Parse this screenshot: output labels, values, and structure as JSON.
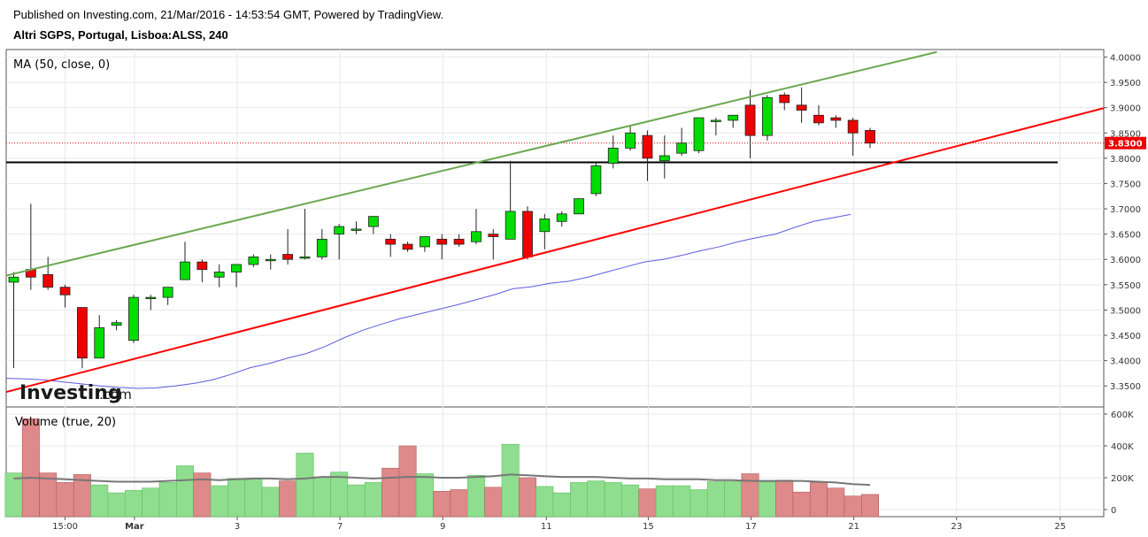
{
  "header": {
    "published": "Published on Investing.com, 21/Mar/2016 - 14:53:54 GMT, Powered by TradingView.",
    "instrument": "Altri SGPS, Portugal, Lisboa:ALSS, 240"
  },
  "logo": {
    "part1": "Investing",
    "part2": ".com"
  },
  "colors": {
    "up": "#00dd00",
    "down": "#ee0000",
    "vol_up": "#8fde8f",
    "vol_down": "#de8a8a",
    "ma": "#5b5bdd",
    "channel_upper": "#6aa84f",
    "channel_lower": "#ff0000",
    "support": "#000000",
    "vol_ma": "#777777"
  },
  "chart_data": {
    "type": "candlestick",
    "price_panel": {
      "label": "MA (50, close, 0)",
      "ylim": [
        3.3,
        4.01
      ],
      "y_ticks": [
        "4.0000",
        "3.9500",
        "3.9000",
        "3.8500",
        "3.8000",
        "3.7500",
        "3.7000",
        "3.6500",
        "3.6000",
        "3.5500",
        "3.5000",
        "3.4500",
        "3.4000",
        "3.3500"
      ],
      "last_price": "3.8300",
      "candles": [
        {
          "o": 3.555,
          "h": 3.575,
          "l": 3.385,
          "c": 3.565
        },
        {
          "o": 3.58,
          "h": 3.71,
          "l": 3.54,
          "c": 3.565
        },
        {
          "o": 3.57,
          "h": 3.605,
          "l": 3.54,
          "c": 3.545
        },
        {
          "o": 3.545,
          "h": 3.55,
          "l": 3.505,
          "c": 3.53
        },
        {
          "o": 3.505,
          "h": 3.505,
          "l": 3.385,
          "c": 3.405
        },
        {
          "o": 3.405,
          "h": 3.49,
          "l": 3.405,
          "c": 3.465
        },
        {
          "o": 3.47,
          "h": 3.48,
          "l": 3.46,
          "c": 3.475
        },
        {
          "o": 3.44,
          "h": 3.53,
          "l": 3.435,
          "c": 3.525
        },
        {
          "o": 3.525,
          "h": 3.53,
          "l": 3.5,
          "c": 3.525
        },
        {
          "o": 3.525,
          "h": 3.545,
          "l": 3.51,
          "c": 3.545
        },
        {
          "o": 3.56,
          "h": 3.635,
          "l": 3.56,
          "c": 3.595
        },
        {
          "o": 3.595,
          "h": 3.6,
          "l": 3.555,
          "c": 3.58
        },
        {
          "o": 3.565,
          "h": 3.59,
          "l": 3.545,
          "c": 3.575
        },
        {
          "o": 3.575,
          "h": 3.59,
          "l": 3.545,
          "c": 3.59
        },
        {
          "o": 3.59,
          "h": 3.61,
          "l": 3.585,
          "c": 3.605
        },
        {
          "o": 3.6,
          "h": 3.61,
          "l": 3.58,
          "c": 3.6
        },
        {
          "o": 3.61,
          "h": 3.66,
          "l": 3.59,
          "c": 3.6
        },
        {
          "o": 3.605,
          "h": 3.7,
          "l": 3.6,
          "c": 3.605
        },
        {
          "o": 3.605,
          "h": 3.66,
          "l": 3.6,
          "c": 3.64
        },
        {
          "o": 3.65,
          "h": 3.67,
          "l": 3.6,
          "c": 3.665
        },
        {
          "o": 3.66,
          "h": 3.675,
          "l": 3.65,
          "c": 3.66
        },
        {
          "o": 3.665,
          "h": 3.68,
          "l": 3.65,
          "c": 3.685
        },
        {
          "o": 3.64,
          "h": 3.65,
          "l": 3.605,
          "c": 3.63
        },
        {
          "o": 3.63,
          "h": 3.635,
          "l": 3.615,
          "c": 3.62
        },
        {
          "o": 3.625,
          "h": 3.645,
          "l": 3.615,
          "c": 3.645
        },
        {
          "o": 3.64,
          "h": 3.65,
          "l": 3.6,
          "c": 3.63
        },
        {
          "o": 3.64,
          "h": 3.65,
          "l": 3.625,
          "c": 3.63
        },
        {
          "o": 3.635,
          "h": 3.7,
          "l": 3.63,
          "c": 3.655
        },
        {
          "o": 3.65,
          "h": 3.66,
          "l": 3.6,
          "c": 3.645
        },
        {
          "o": 3.64,
          "h": 3.795,
          "l": 3.64,
          "c": 3.695
        },
        {
          "o": 3.695,
          "h": 3.705,
          "l": 3.6,
          "c": 3.605
        },
        {
          "o": 3.655,
          "h": 3.69,
          "l": 3.62,
          "c": 3.68
        },
        {
          "o": 3.675,
          "h": 3.695,
          "l": 3.665,
          "c": 3.69
        },
        {
          "o": 3.69,
          "h": 3.72,
          "l": 3.69,
          "c": 3.72
        },
        {
          "o": 3.73,
          "h": 3.79,
          "l": 3.725,
          "c": 3.785
        },
        {
          "o": 3.79,
          "h": 3.845,
          "l": 3.78,
          "c": 3.82
        },
        {
          "o": 3.82,
          "h": 3.865,
          "l": 3.815,
          "c": 3.85
        },
        {
          "o": 3.845,
          "h": 3.855,
          "l": 3.755,
          "c": 3.8
        },
        {
          "o": 3.795,
          "h": 3.845,
          "l": 3.76,
          "c": 3.805
        },
        {
          "o": 3.81,
          "h": 3.86,
          "l": 3.805,
          "c": 3.83
        },
        {
          "o": 3.815,
          "h": 3.88,
          "l": 3.81,
          "c": 3.88
        },
        {
          "o": 3.875,
          "h": 3.88,
          "l": 3.845,
          "c": 3.875
        },
        {
          "o": 3.875,
          "h": 3.885,
          "l": 3.86,
          "c": 3.885
        },
        {
          "o": 3.905,
          "h": 3.935,
          "l": 3.8,
          "c": 3.845
        },
        {
          "o": 3.845,
          "h": 3.925,
          "l": 3.835,
          "c": 3.92
        },
        {
          "o": 3.925,
          "h": 3.93,
          "l": 3.895,
          "c": 3.91
        },
        {
          "o": 3.905,
          "h": 3.94,
          "l": 3.87,
          "c": 3.895
        },
        {
          "o": 3.885,
          "h": 3.905,
          "l": 3.865,
          "c": 3.87
        },
        {
          "o": 3.88,
          "h": 3.885,
          "l": 3.86,
          "c": 3.875
        },
        {
          "o": 3.875,
          "h": 3.88,
          "l": 3.805,
          "c": 3.85
        },
        {
          "o": 3.855,
          "h": 3.86,
          "l": 3.82,
          "c": 3.83
        }
      ],
      "ma50": [
        3.365,
        3.364,
        3.362,
        3.358,
        3.354,
        3.35,
        3.347,
        3.345,
        3.346,
        3.35,
        3.355,
        3.362,
        3.373,
        3.386,
        3.394,
        3.405,
        3.414,
        3.428,
        3.445,
        3.46,
        3.472,
        3.483,
        3.492,
        3.501,
        3.51,
        3.52,
        3.53,
        3.542,
        3.546,
        3.553,
        3.557,
        3.565,
        3.575,
        3.585,
        3.595,
        3.6,
        3.608,
        3.617,
        3.625,
        3.635,
        3.643,
        3.65,
        3.663,
        3.675,
        3.682,
        3.689
      ],
      "support_level": 3.792,
      "channel_upper": [
        {
          "x": 0,
          "y": 3.568
        },
        {
          "x": 53.9,
          "y": 4.01
        }
      ],
      "channel_lower": [
        {
          "x": 0,
          "y": 3.338
        },
        {
          "x": 64,
          "y": 3.899
        }
      ]
    },
    "volume_panel": {
      "label": "Volume (true, 20)",
      "ylim": [
        0,
        620000
      ],
      "y_ticks": [
        "600K",
        "400K",
        "200K",
        "0"
      ],
      "values": [
        230000,
        570000,
        230000,
        170000,
        220000,
        155000,
        105000,
        120000,
        135000,
        170000,
        275000,
        230000,
        150000,
        195000,
        195000,
        140000,
        180000,
        355000,
        205000,
        235000,
        155000,
        170000,
        260000,
        400000,
        225000,
        115000,
        125000,
        215000,
        140000,
        410000,
        200000,
        145000,
        105000,
        170000,
        180000,
        170000,
        155000,
        130000,
        150000,
        150000,
        125000,
        175000,
        175000,
        225000,
        175000,
        185000,
        110000,
        170000,
        135000,
        85000,
        95000
      ],
      "vol_ma": [
        195000,
        200000,
        195000,
        190000,
        185000,
        180000,
        175000,
        175000,
        175000,
        180000,
        185000,
        190000,
        185000,
        190000,
        195000,
        195000,
        190000,
        195000,
        205000,
        205000,
        200000,
        195000,
        200000,
        205000,
        205000,
        200000,
        200000,
        205000,
        210000,
        220000,
        215000,
        210000,
        205000,
        205000,
        205000,
        200000,
        195000,
        195000,
        190000,
        190000,
        190000,
        185000,
        185000,
        180000,
        180000,
        180000,
        180000,
        175000,
        170000,
        160000,
        155000
      ]
    },
    "x_ticks": [
      "15:00",
      "Mar",
      "3",
      "7",
      "9",
      "11",
      "15",
      "17",
      "21",
      "23",
      "25"
    ]
  }
}
